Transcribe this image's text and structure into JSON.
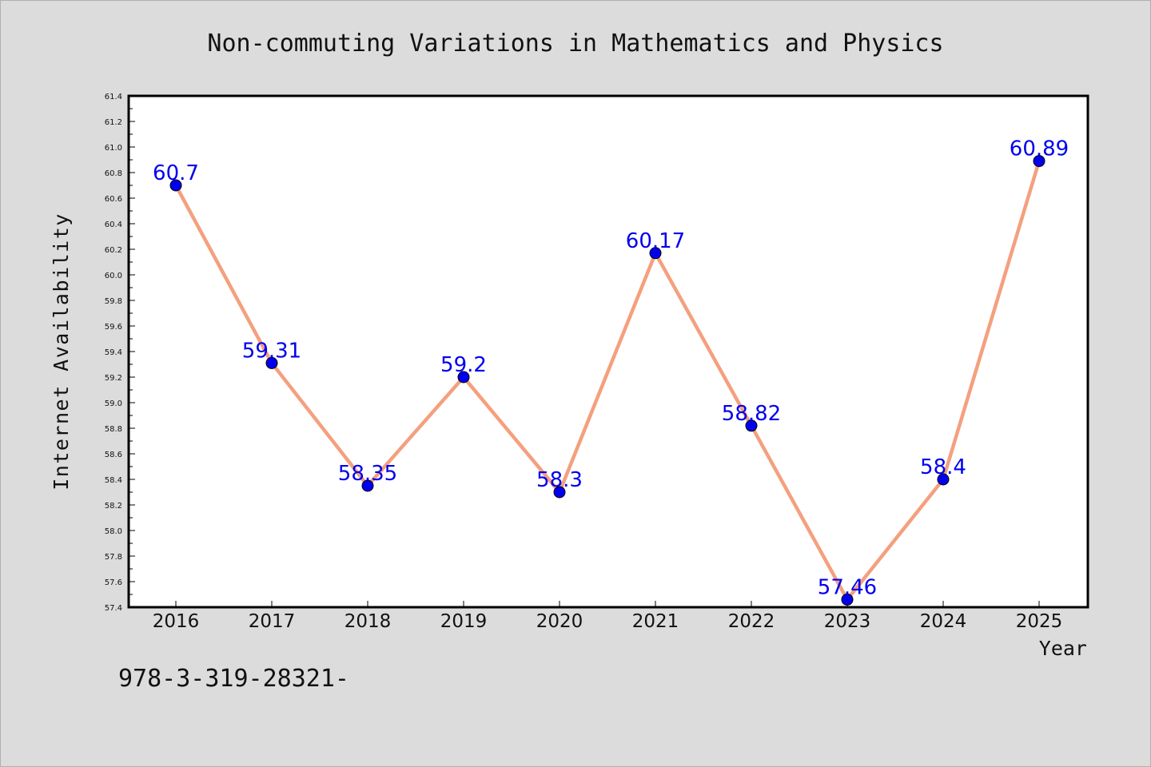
{
  "chart_data": {
    "type": "line",
    "title": "Non-commuting Variations in Mathematics and Physics",
    "xlabel": "Year",
    "ylabel": "Internet Availability",
    "categories": [
      "2016",
      "2017",
      "2018",
      "2019",
      "2020",
      "2021",
      "2022",
      "2023",
      "2024",
      "2025"
    ],
    "series": [
      {
        "values": [
          60.7,
          59.31,
          58.35,
          59.2,
          58.3,
          60.17,
          58.82,
          57.46,
          58.4,
          60.89
        ],
        "labels": [
          "60.7",
          "59.31",
          "58.35",
          "59.2",
          "58.3",
          "60.17",
          "58.82",
          "57.46",
          "58.4",
          "60.89"
        ]
      }
    ],
    "ylim": [
      57.4,
      61.4
    ],
    "yticks": [
      "57.4",
      "57.6",
      "57.8",
      "58.0",
      "58.2",
      "58.4",
      "58.6",
      "58.8",
      "59.0",
      "59.2",
      "59.4",
      "59.6",
      "59.8",
      "60.0",
      "60.2",
      "60.4",
      "60.6",
      "60.8",
      "61.0",
      "61.2",
      "61.4"
    ],
    "grid": false,
    "colors": {
      "line": "#f4a07f",
      "marker": "#0000ee",
      "data_label": "#0000ee",
      "background": "#dcdcdc",
      "plot_area": "#ffffff"
    }
  },
  "footer": {
    "code": "978-3-319-28321-"
  }
}
